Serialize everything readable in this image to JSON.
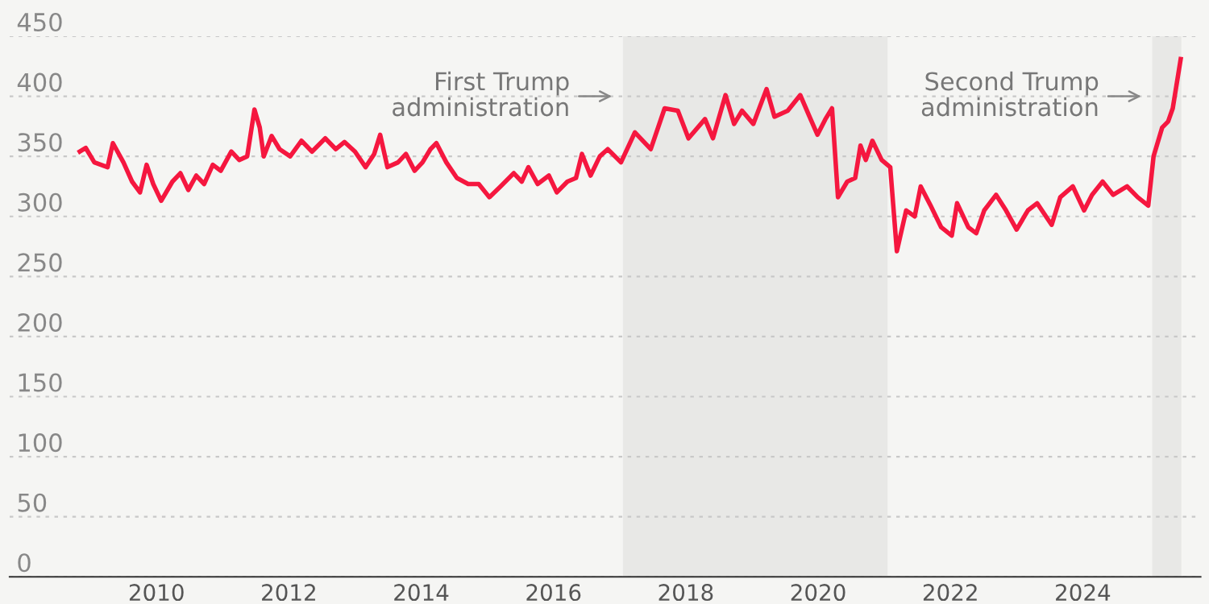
{
  "chart_data": {
    "type": "line",
    "x": [
      2008.84,
      2008.93,
      2009.06,
      2009.26,
      2009.34,
      2009.5,
      2009.63,
      2009.75,
      2009.85,
      2009.95,
      2010.07,
      2010.24,
      2010.36,
      2010.48,
      2010.6,
      2010.72,
      2010.85,
      2010.97,
      2011.13,
      2011.25,
      2011.37,
      2011.48,
      2011.56,
      2011.62,
      2011.74,
      2011.86,
      2012.02,
      2012.19,
      2012.35,
      2012.55,
      2012.71,
      2012.84,
      2013.0,
      2013.16,
      2013.29,
      2013.38,
      2013.49,
      2013.65,
      2013.77,
      2013.9,
      2014.02,
      2014.14,
      2014.23,
      2014.38,
      2014.54,
      2014.71,
      2014.87,
      2015.03,
      2015.2,
      2015.4,
      2015.52,
      2015.62,
      2015.76,
      2015.93,
      2016.05,
      2016.21,
      2016.34,
      2016.43,
      2016.56,
      2016.7,
      2016.82,
      2017.02,
      2017.23,
      2017.47,
      2017.68,
      2017.88,
      2018.04,
      2018.29,
      2018.41,
      2018.6,
      2018.73,
      2018.85,
      2019.02,
      2019.22,
      2019.34,
      2019.54,
      2019.73,
      2019.87,
      2019.99,
      2020.11,
      2020.21,
      2020.3,
      2020.44,
      2020.56,
      2020.64,
      2020.72,
      2020.82,
      2020.96,
      2021.09,
      2021.19,
      2021.33,
      2021.46,
      2021.55,
      2021.7,
      2021.86,
      2022.02,
      2022.1,
      2022.27,
      2022.39,
      2022.51,
      2022.69,
      2022.84,
      2023.0,
      2023.17,
      2023.31,
      2023.53,
      2023.66,
      2023.85,
      2024.02,
      2024.14,
      2024.3,
      2024.46,
      2024.67,
      2024.83,
      2024.99,
      2025.07,
      2025.2,
      2025.29,
      2025.36,
      2025.48
    ],
    "series": [
      {
        "color": "#f5173f",
        "values": [
          354,
          357,
          345,
          341,
          361,
          345,
          329,
          320,
          343,
          327,
          313,
          329,
          336,
          322,
          334,
          327,
          343,
          338,
          354,
          347,
          350,
          389,
          374,
          350,
          367,
          356,
          350,
          363,
          354,
          365,
          356,
          362,
          354,
          341,
          352,
          368,
          341,
          345,
          352,
          338,
          345,
          356,
          361,
          345,
          332,
          327,
          327,
          316,
          325,
          336,
          329,
          341,
          327,
          334,
          320,
          329,
          332,
          352,
          334,
          350,
          356,
          345,
          370,
          356,
          390,
          388,
          365,
          381,
          365,
          401,
          377,
          388,
          377,
          406,
          383,
          388,
          401,
          383,
          368,
          381,
          390,
          316,
          329,
          332,
          359,
          347,
          363,
          347,
          341,
          271,
          305,
          300,
          325,
          309,
          291,
          284,
          311,
          291,
          286,
          305,
          318,
          305,
          289,
          305,
          311,
          293,
          316,
          325,
          305,
          318,
          329,
          318,
          325,
          316,
          309,
          350,
          374,
          379,
          390,
          431
        ]
      }
    ],
    "xlim": [
      2007.78,
      2025.78
    ],
    "ylim": [
      0,
      450
    ],
    "xticks": [
      2010,
      2012,
      2014,
      2016,
      2018,
      2020,
      2022,
      2024
    ],
    "yticks": [
      0,
      50,
      100,
      150,
      200,
      250,
      300,
      350,
      400,
      450
    ],
    "grid": "y",
    "legend": false,
    "line_style": "solid",
    "marker": "none",
    "bands": [
      {
        "axis": "x",
        "from": 2017.05,
        "to": 2021.05,
        "label": "First Trump\nadministration",
        "color": "#e8e8e6"
      },
      {
        "axis": "x",
        "from": 2025.05,
        "to": 2025.49,
        "label": "Second Trump\nadministration",
        "color": "#e8e8e6"
      }
    ]
  }
}
